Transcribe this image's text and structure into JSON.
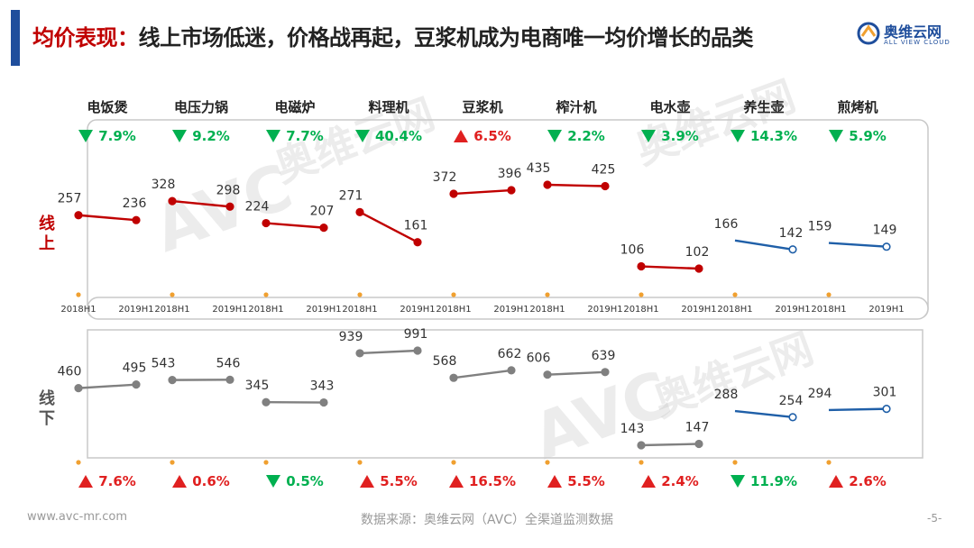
{
  "header": {
    "title_lead": "均价表现：",
    "title_rest": "线上市场低迷，价格战再起，豆浆机成为电商唯一均价增长的品类",
    "logo_cn": "奥维云网",
    "logo_en": "ALL VIEW CLOUD"
  },
  "watermark": {
    "big": "AVC",
    "cn": "奥维云网",
    "en": "ALL VIEW CLOUD"
  },
  "side_labels": {
    "online": "线上",
    "offline": "线下"
  },
  "footer": {
    "left": "www.avc-mr.com",
    "center": "数据来源：奥维云网（AVC）全渠道监测数据",
    "page": "-5-"
  },
  "colors": {
    "up_red": "#c00000",
    "down_blue": "#1f5fa8",
    "offline_gray": "#808080",
    "dot_orange": "#f0a030",
    "pct_green": "#00b050",
    "pct_red": "#e02020"
  },
  "chart_data": {
    "type": "line",
    "x_labels": [
      "2018H1",
      "2019H1"
    ],
    "categories": [
      "电饭煲",
      "电压力锅",
      "电磁炉",
      "料理机",
      "豆浆机",
      "榨汁机",
      "电水壶",
      "养生壶",
      "煎烤机"
    ],
    "series": [
      {
        "name": "线上",
        "values_2018H1": [
          257,
          328,
          224,
          271,
          372,
          435,
          106,
          166,
          159
        ],
        "values_2019H1": [
          236,
          298,
          207,
          161,
          396,
          425,
          102,
          142,
          149
        ],
        "change": [
          "7.9%",
          "9.2%",
          "7.7%",
          "40.4%",
          "6.5%",
          "2.2%",
          "3.9%",
          "14.3%",
          "5.9%"
        ],
        "direction": [
          "down",
          "down",
          "down",
          "down",
          "up",
          "down",
          "down",
          "down",
          "down"
        ],
        "line_color": [
          "red",
          "red",
          "red",
          "red",
          "red",
          "red",
          "red",
          "blue",
          "blue"
        ]
      },
      {
        "name": "线下",
        "values_2018H1": [
          460,
          543,
          345,
          939,
          568,
          606,
          143,
          288,
          294
        ],
        "values_2019H1": [
          495,
          546,
          343,
          991,
          662,
          639,
          147,
          254,
          301
        ],
        "change": [
          "7.6%",
          "0.6%",
          "0.5%",
          "5.5%",
          "16.5%",
          "5.5%",
          "2.4%",
          "11.9%",
          "2.6%"
        ],
        "direction": [
          "up",
          "up",
          "down",
          "up",
          "up",
          "up",
          "up",
          "down",
          "up"
        ],
        "line_color": [
          "gray",
          "gray",
          "gray",
          "gray",
          "gray",
          "gray",
          "gray",
          "blue",
          "blue"
        ]
      }
    ]
  }
}
